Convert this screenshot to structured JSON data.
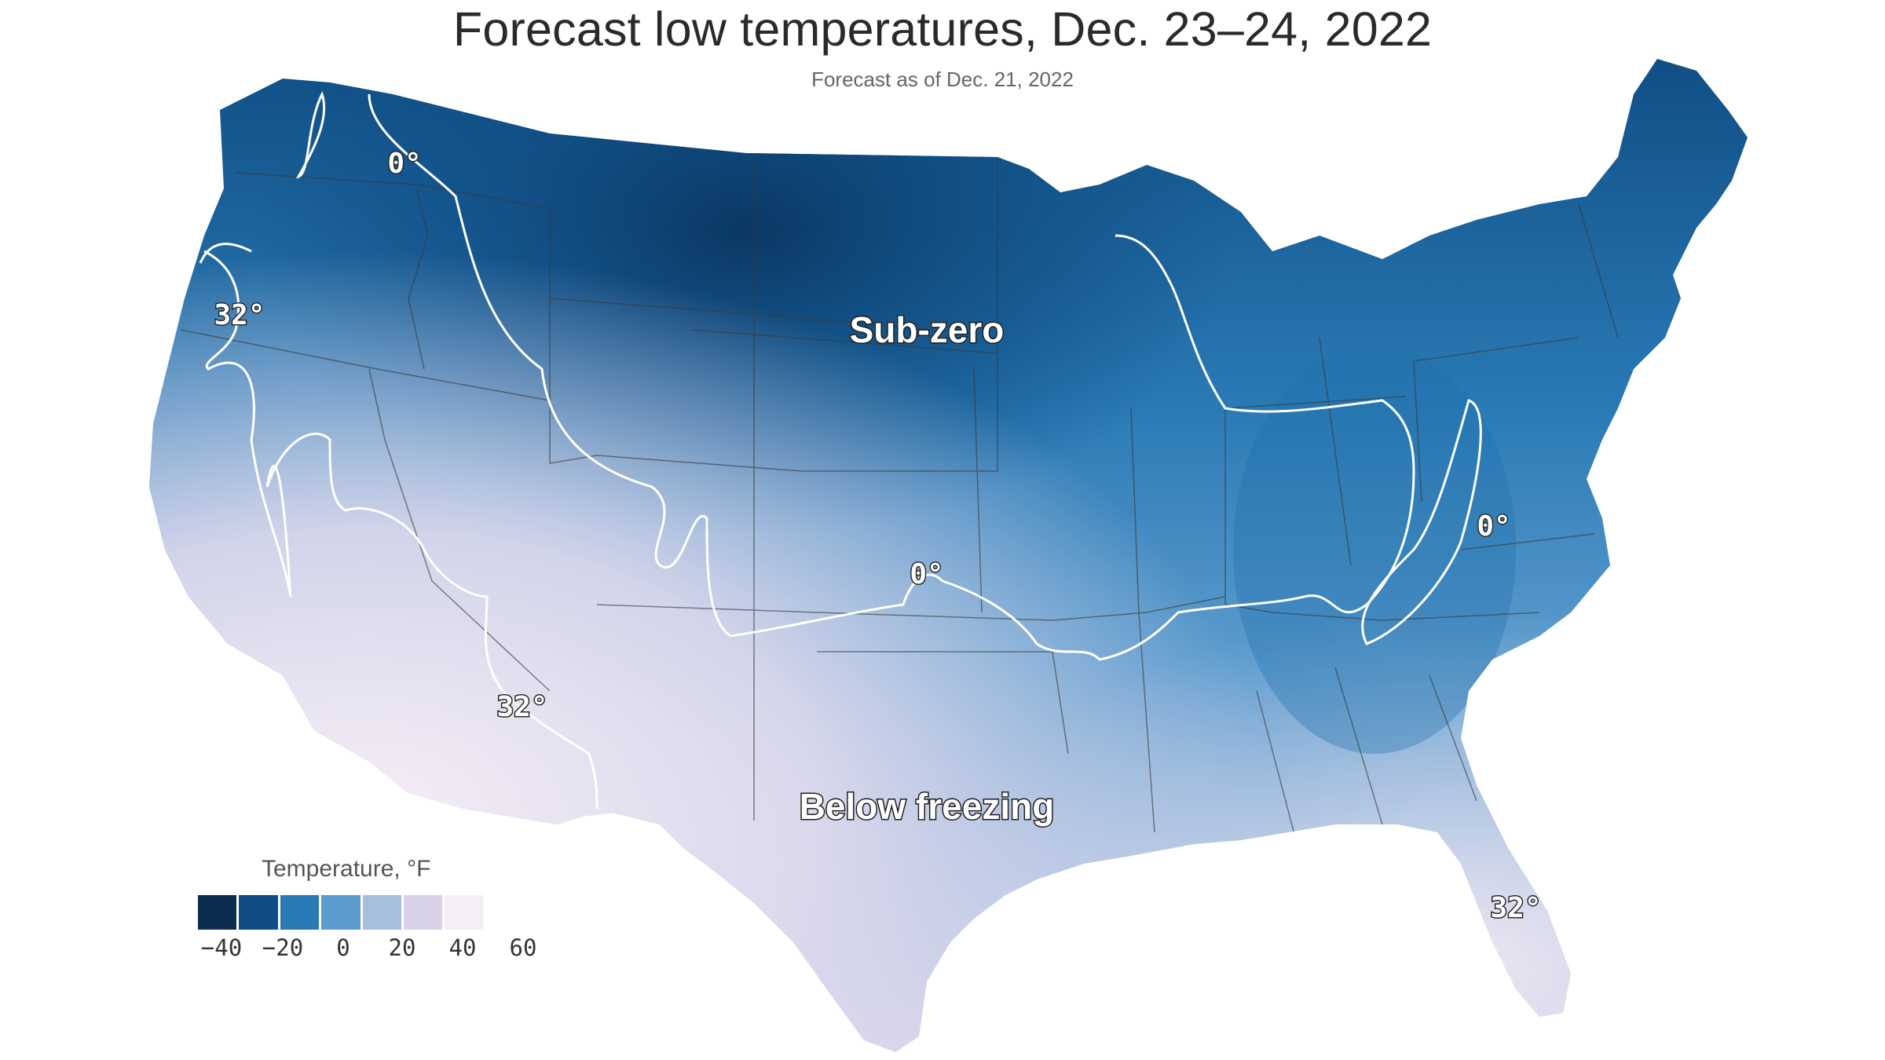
{
  "title": "Forecast low temperatures, Dec. 23–24, 2022",
  "subtitle": "Forecast as of Dec. 21, 2022",
  "regions": {
    "subzero": "Sub-zero",
    "freezing": "Below freezing"
  },
  "isotherm_labels": {
    "wa": "0°",
    "ks": "0°",
    "wv": "0°",
    "or": "32°",
    "az": "32°",
    "fl": "32°"
  },
  "legend": {
    "title": "Temperature, °F",
    "ticks": [
      "−40",
      "−20",
      "0",
      "20",
      "40",
      "60"
    ],
    "colors": [
      "#0c2d4f",
      "#0f4d84",
      "#2a7ab5",
      "#5b9bcd",
      "#a7bedf",
      "#d7d2e8",
      "#f6eef7",
      "#ffffff"
    ]
  },
  "colors": {
    "deep": "#0f4d84",
    "mid": "#2f80ba",
    "light": "#7fb0d8",
    "pale": "#c9d3ea",
    "warm": "#f2eaf3"
  }
}
